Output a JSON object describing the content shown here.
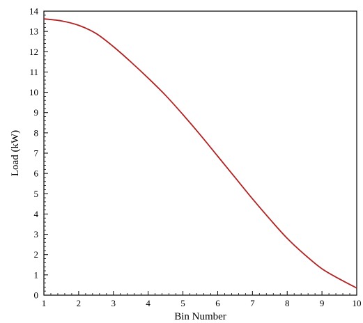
{
  "chart_data": {
    "type": "line",
    "title": "",
    "xlabel": "Bin Number",
    "ylabel": "Load (kW)",
    "xlim": [
      1,
      10
    ],
    "ylim": [
      0,
      14
    ],
    "grid": false,
    "xticks": [
      "1",
      "2",
      "3",
      "4",
      "5",
      "6",
      "7",
      "8",
      "9",
      "10"
    ],
    "yticks": [
      "0",
      "1",
      "2",
      "3",
      "4",
      "5",
      "6",
      "7",
      "8",
      "9",
      "10",
      "11",
      "12",
      "13",
      "14"
    ],
    "series": [
      {
        "color": "#b22222",
        "x": [
          1,
          1.5,
          2,
          2.5,
          3,
          3.5,
          4,
          4.5,
          5,
          5.5,
          6,
          6.5,
          7,
          7.5,
          8,
          8.5,
          9,
          9.5,
          10
        ],
        "y": [
          13.62,
          13.52,
          13.3,
          12.9,
          12.25,
          11.5,
          10.7,
          9.85,
          8.9,
          7.9,
          6.85,
          5.8,
          4.75,
          3.75,
          2.8,
          2.0,
          1.3,
          0.8,
          0.35
        ]
      }
    ]
  }
}
